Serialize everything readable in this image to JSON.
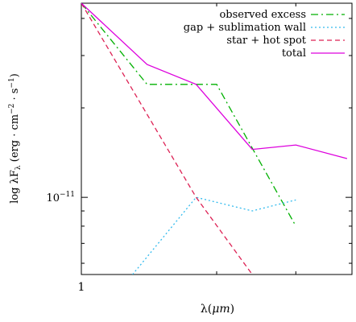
{
  "chart_data": {
    "type": "line",
    "xlabel_main": "λ(",
    "xlabel_unit": "μm",
    "xlabel_close": ")",
    "ylabel": "log λF_λ (erg · cm⁻² · s⁻¹)",
    "ylabel_parts": {
      "prefix": "log λF",
      "sub": "λ",
      "paren_open": " (erg · cm",
      "sup1": "−2",
      "mid": " · s",
      "sup2": "−1",
      "paren_close": ")"
    },
    "x_scale": "log",
    "y_scale": "log",
    "xlim": [
      1.0,
      4.0
    ],
    "ylim": [
      5.5e-12,
      4.5e-11
    ],
    "x_ticks": [
      {
        "value": 1,
        "label": "1"
      }
    ],
    "y_ticks": [
      {
        "value": 1e-11,
        "label_base": "10",
        "label_exp": "−11"
      }
    ],
    "grid": false,
    "legend_position": "top-right",
    "series": [
      {
        "name": "observed excess",
        "color": "#00b000",
        "dash": "dashdot",
        "x": [
          1.0,
          1.4,
          2.0,
          3.0
        ],
        "y": [
          4.5e-11,
          2.4e-11,
          2.4e-11,
          8e-12
        ]
      },
      {
        "name": "gap + sublimation wall",
        "color": "#33bbee",
        "dash": "dotted",
        "x": [
          1.3,
          1.8,
          2.4,
          3.0
        ],
        "y": [
          5.5e-12,
          1e-11,
          9e-12,
          9.8e-12
        ]
      },
      {
        "name": "star + hot spot",
        "color": "#dd2255",
        "dash": "dashed",
        "x": [
          1.0,
          1.8,
          2.4
        ],
        "y": [
          4.5e-11,
          1e-11,
          5.5e-12
        ]
      },
      {
        "name": "total",
        "color": "#dd00dd",
        "dash": "solid",
        "x": [
          1.0,
          1.4,
          1.8,
          2.4,
          3.0,
          3.9
        ],
        "y": [
          4.5e-11,
          2.8e-11,
          2.4e-11,
          1.45e-11,
          1.5e-11,
          1.35e-11
        ]
      }
    ]
  }
}
